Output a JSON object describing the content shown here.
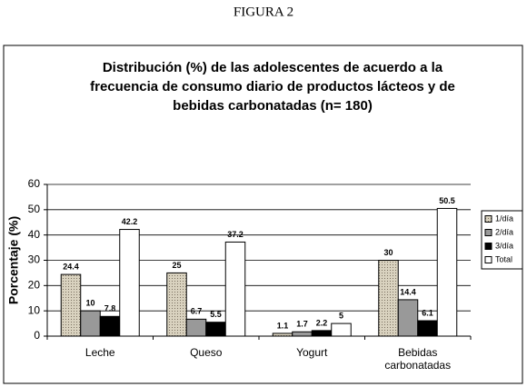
{
  "header": {
    "title": "FIGURA 2"
  },
  "chart_data": {
    "type": "bar",
    "title": "Distribución  (%) de las adolescentes de acuerdo a la frecuencia de consumo diario de productos lácteos y de bebidas carbonatadas (n= 180)",
    "ylabel": "Porcentaje (%)",
    "categories": [
      "Leche",
      "Queso",
      "Yogurt",
      "Bebidas carbonatadas"
    ],
    "series": [
      {
        "name": "1/día",
        "color": "#d9d2bf",
        "values": [
          24.4,
          25,
          1.1,
          30
        ]
      },
      {
        "name": "2/día",
        "color": "#999999",
        "values": [
          10,
          6.7,
          1.7,
          14.4
        ]
      },
      {
        "name": "3/día",
        "color": "#000000",
        "values": [
          7.8,
          5.5,
          2.2,
          6.1
        ]
      },
      {
        "name": "Total",
        "color": "#ffffff",
        "values": [
          42.2,
          37.2,
          5,
          50.5
        ]
      }
    ],
    "ylim": [
      0,
      60
    ],
    "yticks": [
      0,
      10,
      20,
      30,
      40,
      50,
      60
    ],
    "grid": true,
    "legend": "right"
  }
}
